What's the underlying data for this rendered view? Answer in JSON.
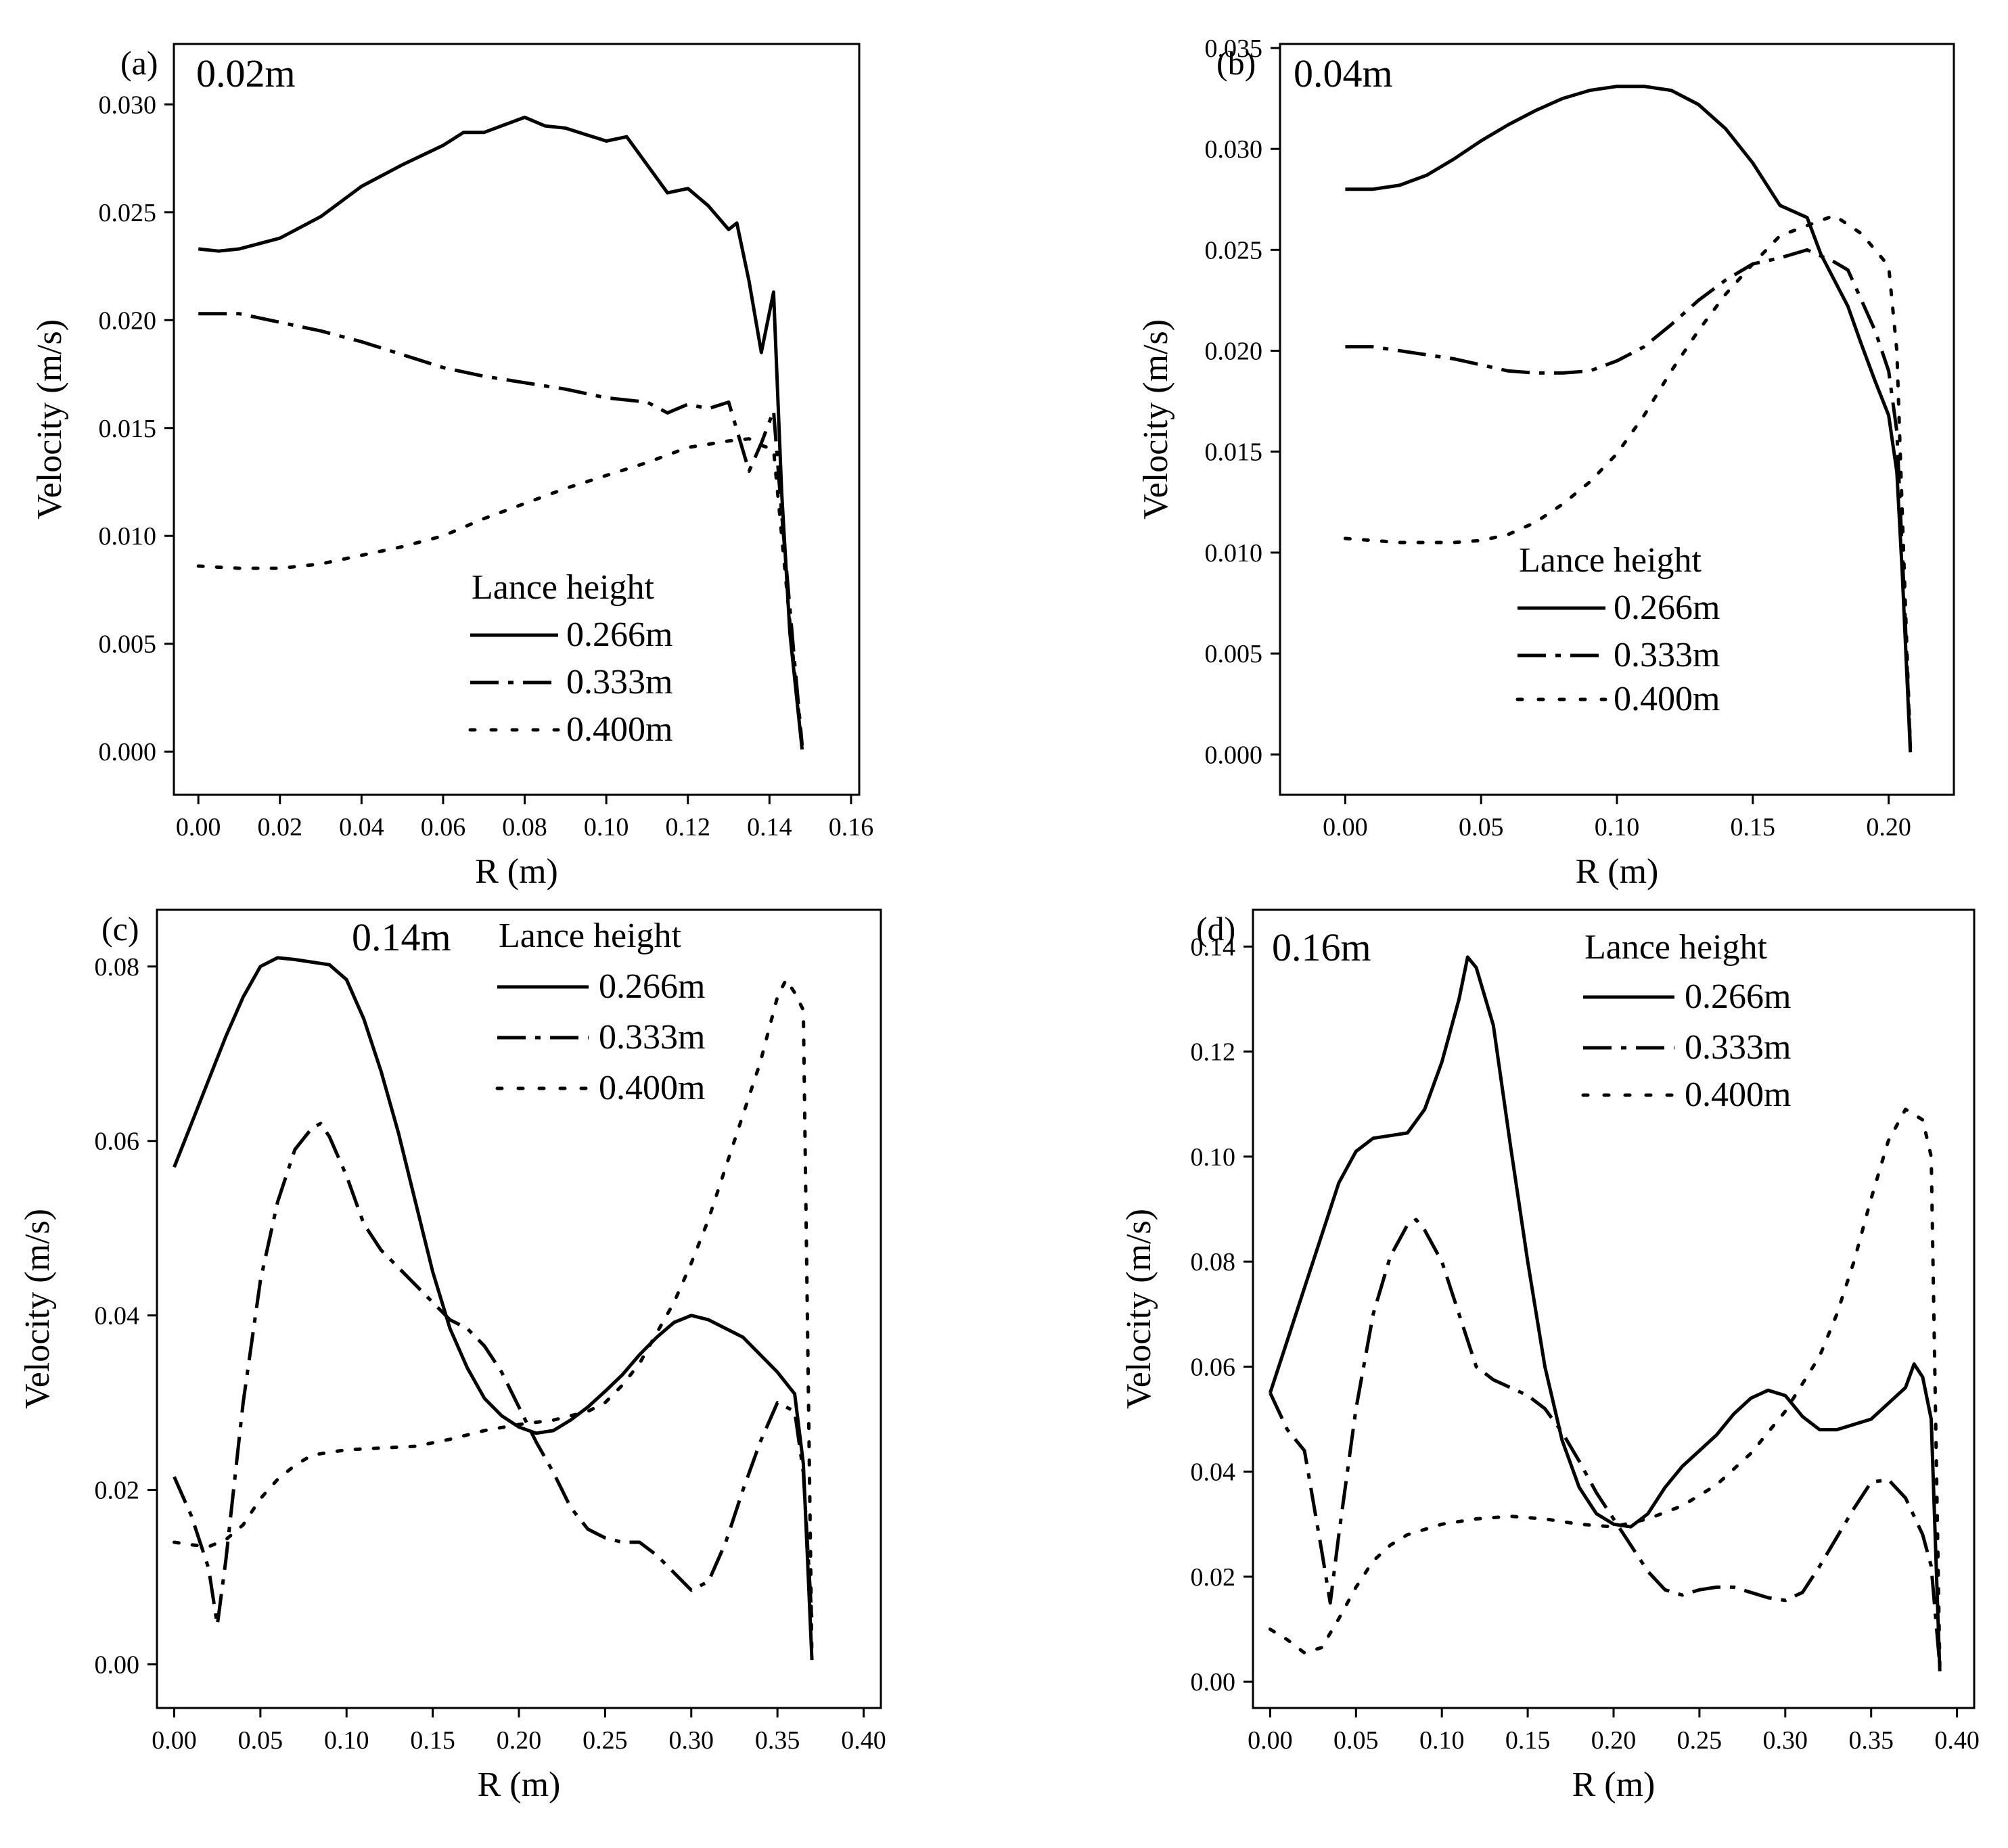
{
  "figure": {
    "shared": {
      "xlabel": "R (m)",
      "ylabel": "Velocity (m/s)",
      "legend_title": "Lance height",
      "series_names": [
        "0.266m",
        "0.333m",
        "0.400m"
      ],
      "series_styles": [
        "solid",
        "dashdot",
        "dotted"
      ],
      "line_color": "#000000"
    }
  },
  "chart_data": [
    {
      "type": "line",
      "panel": "(a)",
      "title": "0.02m",
      "xlabel": "R (m)",
      "ylabel": "Velocity (m/s)",
      "xlim": [
        -0.006,
        0.162
      ],
      "ylim": [
        -0.002,
        0.0328
      ],
      "xticks": [
        0.0,
        0.02,
        0.04,
        0.06,
        0.08,
        0.1,
        0.12,
        0.14,
        0.16
      ],
      "xtick_labels": [
        "0.00",
        "0.02",
        "0.04",
        "0.06",
        "0.08",
        "0.10",
        "0.12",
        "0.14",
        "0.16"
      ],
      "yticks": [
        0.0,
        0.005,
        0.01,
        0.015,
        0.02,
        0.025,
        0.03
      ],
      "ytick_labels": [
        "0.000",
        "0.005",
        "0.010",
        "0.015",
        "0.020",
        "0.025",
        "0.030"
      ],
      "legend_position": "lower-right",
      "series": [
        {
          "name": "0.266m",
          "style": "solid",
          "x": [
            0,
            0.005,
            0.01,
            0.02,
            0.03,
            0.04,
            0.05,
            0.06,
            0.065,
            0.07,
            0.08,
            0.085,
            0.09,
            0.095,
            0.1,
            0.105,
            0.11,
            0.115,
            0.12,
            0.125,
            0.13,
            0.132,
            0.135,
            0.138,
            0.141,
            0.143,
            0.145,
            0.148
          ],
          "y": [
            0.0233,
            0.0232,
            0.0233,
            0.0238,
            0.0248,
            0.0262,
            0.0272,
            0.0281,
            0.0287,
            0.0287,
            0.0294,
            0.029,
            0.0289,
            0.0286,
            0.0283,
            0.0285,
            0.0272,
            0.0259,
            0.0261,
            0.0253,
            0.0242,
            0.0245,
            0.0218,
            0.0185,
            0.0213,
            0.012,
            0.0055,
            0.0001
          ]
        },
        {
          "name": "0.333m",
          "style": "dashdot",
          "x": [
            0,
            0.01,
            0.02,
            0.03,
            0.04,
            0.05,
            0.06,
            0.07,
            0.08,
            0.09,
            0.1,
            0.11,
            0.115,
            0.12,
            0.125,
            0.13,
            0.135,
            0.138,
            0.141,
            0.143,
            0.146,
            0.148
          ],
          "y": [
            0.0203,
            0.0203,
            0.0199,
            0.0195,
            0.019,
            0.0184,
            0.0178,
            0.0174,
            0.0171,
            0.0168,
            0.0164,
            0.0162,
            0.0157,
            0.0161,
            0.0159,
            0.0162,
            0.013,
            0.0143,
            0.0158,
            0.011,
            0.0045,
            0.0003
          ]
        },
        {
          "name": "0.400m",
          "style": "dotted",
          "x": [
            0,
            0.01,
            0.02,
            0.03,
            0.04,
            0.05,
            0.06,
            0.07,
            0.08,
            0.09,
            0.1,
            0.11,
            0.12,
            0.13,
            0.135,
            0.138,
            0.141,
            0.143,
            0.146,
            0.148
          ],
          "y": [
            0.0086,
            0.0085,
            0.0085,
            0.0087,
            0.0091,
            0.0095,
            0.01,
            0.0108,
            0.0115,
            0.0122,
            0.0128,
            0.0134,
            0.0141,
            0.0144,
            0.0145,
            0.0142,
            0.014,
            0.01,
            0.004,
            0.0003
          ]
        }
      ]
    },
    {
      "type": "line",
      "panel": "(b)",
      "title": "0.04m",
      "xlabel": "R (m)",
      "ylabel": "Velocity (m/s)",
      "xlim": [
        -0.024,
        0.224
      ],
      "ylim": [
        -0.002,
        0.0352
      ],
      "xticks": [
        0.0,
        0.05,
        0.1,
        0.15,
        0.2
      ],
      "xtick_labels": [
        "0.00",
        "0.05",
        "0.10",
        "0.15",
        "0.20"
      ],
      "yticks": [
        0.0,
        0.005,
        0.01,
        0.015,
        0.02,
        0.025,
        0.03,
        0.035
      ],
      "ytick_labels": [
        "0.000",
        "0.005",
        "0.010",
        "0.015",
        "0.020",
        "0.025",
        "0.030",
        "0.035"
      ],
      "legend_position": "lower-center",
      "series": [
        {
          "name": "0.266m",
          "style": "solid",
          "x": [
            0,
            0.01,
            0.02,
            0.03,
            0.04,
            0.05,
            0.06,
            0.07,
            0.08,
            0.09,
            0.1,
            0.11,
            0.12,
            0.13,
            0.14,
            0.15,
            0.16,
            0.17,
            0.175,
            0.18,
            0.185,
            0.19,
            0.195,
            0.2,
            0.203,
            0.205,
            0.208
          ],
          "y": [
            0.028,
            0.028,
            0.0282,
            0.0287,
            0.0295,
            0.0304,
            0.0312,
            0.0319,
            0.0325,
            0.0329,
            0.0331,
            0.0331,
            0.0329,
            0.0322,
            0.031,
            0.0293,
            0.0272,
            0.0266,
            0.0248,
            0.0235,
            0.0222,
            0.0203,
            0.0185,
            0.0168,
            0.014,
            0.009,
            0.0001
          ]
        },
        {
          "name": "0.333m",
          "style": "dashdot",
          "x": [
            0,
            0.01,
            0.02,
            0.03,
            0.04,
            0.05,
            0.06,
            0.07,
            0.08,
            0.09,
            0.1,
            0.11,
            0.12,
            0.13,
            0.14,
            0.15,
            0.16,
            0.17,
            0.18,
            0.185,
            0.19,
            0.195,
            0.2,
            0.203,
            0.206,
            0.208
          ],
          "y": [
            0.0202,
            0.0202,
            0.02,
            0.0198,
            0.0196,
            0.0193,
            0.019,
            0.0189,
            0.0189,
            0.019,
            0.0195,
            0.0202,
            0.0213,
            0.0225,
            0.0235,
            0.0243,
            0.0246,
            0.025,
            0.0244,
            0.024,
            0.0225,
            0.021,
            0.019,
            0.016,
            0.007,
            0.0003
          ]
        },
        {
          "name": "0.400m",
          "style": "dotted",
          "x": [
            0,
            0.02,
            0.04,
            0.05,
            0.06,
            0.07,
            0.08,
            0.09,
            0.1,
            0.11,
            0.12,
            0.13,
            0.14,
            0.15,
            0.16,
            0.17,
            0.18,
            0.19,
            0.2,
            0.203,
            0.206,
            0.208
          ],
          "y": [
            0.0107,
            0.0105,
            0.0105,
            0.0106,
            0.0109,
            0.0115,
            0.0124,
            0.0135,
            0.0149,
            0.0168,
            0.019,
            0.021,
            0.0228,
            0.0243,
            0.0257,
            0.0262,
            0.0267,
            0.0258,
            0.0242,
            0.02,
            0.008,
            0.0003
          ]
        }
      ]
    },
    {
      "type": "line",
      "panel": "(c)",
      "title": "0.14m",
      "xlabel": "R (m)",
      "ylabel": "Velocity (m/s)",
      "xlim": [
        -0.01,
        0.41
      ],
      "ylim": [
        -0.005,
        0.0865
      ],
      "xticks": [
        0.0,
        0.05,
        0.1,
        0.15,
        0.2,
        0.25,
        0.3,
        0.35,
        0.4
      ],
      "xtick_labels": [
        "0.00",
        "0.05",
        "0.10",
        "0.15",
        "0.20",
        "0.25",
        "0.30",
        "0.35",
        "0.40"
      ],
      "yticks": [
        0.0,
        0.02,
        0.04,
        0.06,
        0.08
      ],
      "ytick_labels": [
        "0.00",
        "0.02",
        "0.04",
        "0.06",
        "0.08"
      ],
      "legend_position": "top-right",
      "series": [
        {
          "name": "0.266m",
          "style": "solid",
          "x": [
            0,
            0.01,
            0.02,
            0.03,
            0.04,
            0.05,
            0.06,
            0.07,
            0.08,
            0.09,
            0.1,
            0.11,
            0.12,
            0.13,
            0.14,
            0.15,
            0.16,
            0.17,
            0.18,
            0.19,
            0.2,
            0.21,
            0.22,
            0.23,
            0.24,
            0.25,
            0.26,
            0.27,
            0.28,
            0.29,
            0.3,
            0.31,
            0.32,
            0.33,
            0.34,
            0.35,
            0.36,
            0.365,
            0.37
          ],
          "y": [
            0.057,
            0.062,
            0.067,
            0.072,
            0.0765,
            0.08,
            0.081,
            0.0808,
            0.0805,
            0.0802,
            0.0785,
            0.074,
            0.068,
            0.061,
            0.053,
            0.045,
            0.0385,
            0.034,
            0.0305,
            0.0285,
            0.0272,
            0.0265,
            0.0268,
            0.028,
            0.0295,
            0.0313,
            0.0332,
            0.0355,
            0.0375,
            0.0392,
            0.04,
            0.0395,
            0.0385,
            0.0375,
            0.0355,
            0.0335,
            0.031,
            0.023,
            0.0005
          ]
        },
        {
          "name": "0.333m",
          "style": "dashdot",
          "x": [
            0,
            0.01,
            0.02,
            0.025,
            0.03,
            0.04,
            0.05,
            0.06,
            0.07,
            0.08,
            0.085,
            0.09,
            0.1,
            0.11,
            0.12,
            0.13,
            0.14,
            0.15,
            0.16,
            0.17,
            0.18,
            0.19,
            0.2,
            0.21,
            0.22,
            0.23,
            0.24,
            0.25,
            0.26,
            0.27,
            0.28,
            0.29,
            0.3,
            0.31,
            0.32,
            0.33,
            0.34,
            0.35,
            0.36,
            0.365,
            0.37
          ],
          "y": [
            0.0215,
            0.017,
            0.011,
            0.0045,
            0.012,
            0.03,
            0.044,
            0.053,
            0.059,
            0.0615,
            0.062,
            0.0605,
            0.056,
            0.0505,
            0.0475,
            0.0455,
            0.0435,
            0.0415,
            0.0395,
            0.0385,
            0.0365,
            0.0335,
            0.0295,
            0.0255,
            0.022,
            0.018,
            0.0155,
            0.0145,
            0.014,
            0.014,
            0.0125,
            0.0105,
            0.0085,
            0.0095,
            0.014,
            0.02,
            0.0255,
            0.03,
            0.029,
            0.022,
            0.005
          ]
        },
        {
          "name": "0.400m",
          "style": "dotted",
          "x": [
            0,
            0.01,
            0.02,
            0.03,
            0.04,
            0.05,
            0.06,
            0.07,
            0.08,
            0.1,
            0.12,
            0.14,
            0.16,
            0.18,
            0.2,
            0.22,
            0.24,
            0.25,
            0.26,
            0.27,
            0.28,
            0.29,
            0.3,
            0.31,
            0.32,
            0.33,
            0.34,
            0.35,
            0.355,
            0.36,
            0.365,
            0.37
          ],
          "y": [
            0.014,
            0.0137,
            0.0135,
            0.0143,
            0.016,
            0.019,
            0.0212,
            0.0228,
            0.024,
            0.0246,
            0.0248,
            0.025,
            0.0258,
            0.0268,
            0.0275,
            0.028,
            0.029,
            0.03,
            0.032,
            0.0345,
            0.038,
            0.0415,
            0.046,
            0.051,
            0.057,
            0.063,
            0.069,
            0.0765,
            0.0785,
            0.077,
            0.075,
            0.0005
          ]
        }
      ]
    },
    {
      "type": "line",
      "panel": "(d)",
      "title": "0.16m",
      "xlabel": "R (m)",
      "ylabel": "Velocity (m/s)",
      "xlim": [
        -0.01,
        0.41
      ],
      "ylim": [
        -0.005,
        0.147
      ],
      "xticks": [
        0.0,
        0.05,
        0.1,
        0.15,
        0.2,
        0.25,
        0.3,
        0.35,
        0.4
      ],
      "xtick_labels": [
        "0.00",
        "0.05",
        "0.10",
        "0.15",
        "0.20",
        "0.25",
        "0.30",
        "0.35",
        "0.40"
      ],
      "yticks": [
        0.0,
        0.02,
        0.04,
        0.06,
        0.08,
        0.1,
        0.12,
        0.14
      ],
      "ytick_labels": [
        "0.00",
        "0.02",
        "0.04",
        "0.06",
        "0.08",
        "0.10",
        "0.12",
        "0.14"
      ],
      "legend_position": "top-right",
      "series": [
        {
          "name": "0.266m",
          "style": "solid",
          "x": [
            0,
            0.01,
            0.02,
            0.03,
            0.04,
            0.05,
            0.06,
            0.07,
            0.08,
            0.09,
            0.1,
            0.11,
            0.115,
            0.12,
            0.13,
            0.14,
            0.15,
            0.16,
            0.17,
            0.18,
            0.19,
            0.2,
            0.21,
            0.22,
            0.23,
            0.24,
            0.25,
            0.26,
            0.27,
            0.28,
            0.29,
            0.3,
            0.31,
            0.32,
            0.33,
            0.34,
            0.35,
            0.36,
            0.37,
            0.375,
            0.38,
            0.385,
            0.39
          ],
          "y": [
            0.055,
            0.065,
            0.075,
            0.085,
            0.095,
            0.101,
            0.1035,
            0.104,
            0.1045,
            0.109,
            0.118,
            0.13,
            0.138,
            0.136,
            0.125,
            0.102,
            0.08,
            0.06,
            0.046,
            0.037,
            0.032,
            0.03,
            0.0295,
            0.032,
            0.037,
            0.041,
            0.044,
            0.047,
            0.051,
            0.054,
            0.0555,
            0.0545,
            0.0505,
            0.048,
            0.048,
            0.049,
            0.05,
            0.053,
            0.056,
            0.0605,
            0.058,
            0.05,
            0.002
          ]
        },
        {
          "name": "0.333m",
          "style": "dashdot",
          "x": [
            0,
            0.01,
            0.02,
            0.03,
            0.035,
            0.04,
            0.05,
            0.06,
            0.07,
            0.08,
            0.085,
            0.09,
            0.1,
            0.11,
            0.12,
            0.13,
            0.14,
            0.15,
            0.16,
            0.17,
            0.18,
            0.19,
            0.2,
            0.21,
            0.22,
            0.23,
            0.24,
            0.25,
            0.26,
            0.27,
            0.28,
            0.29,
            0.3,
            0.31,
            0.32,
            0.33,
            0.34,
            0.35,
            0.36,
            0.37,
            0.38,
            0.385,
            0.39
          ],
          "y": [
            0.055,
            0.048,
            0.044,
            0.025,
            0.015,
            0.028,
            0.052,
            0.07,
            0.081,
            0.087,
            0.088,
            0.086,
            0.08,
            0.07,
            0.06,
            0.0575,
            0.056,
            0.0545,
            0.052,
            0.0475,
            0.042,
            0.036,
            0.031,
            0.026,
            0.021,
            0.0175,
            0.0165,
            0.0175,
            0.018,
            0.018,
            0.017,
            0.016,
            0.0155,
            0.017,
            0.022,
            0.0275,
            0.033,
            0.038,
            0.0385,
            0.035,
            0.028,
            0.022,
            0.003
          ]
        },
        {
          "name": "0.400m",
          "style": "dotted",
          "x": [
            0,
            0.01,
            0.02,
            0.03,
            0.04,
            0.05,
            0.06,
            0.07,
            0.08,
            0.1,
            0.12,
            0.14,
            0.16,
            0.18,
            0.2,
            0.22,
            0.24,
            0.26,
            0.28,
            0.3,
            0.32,
            0.33,
            0.34,
            0.35,
            0.36,
            0.37,
            0.38,
            0.385,
            0.39
          ],
          "y": [
            0.01,
            0.008,
            0.0055,
            0.0065,
            0.012,
            0.018,
            0.023,
            0.026,
            0.028,
            0.03,
            0.031,
            0.0315,
            0.031,
            0.03,
            0.0295,
            0.031,
            0.0335,
            0.0375,
            0.0435,
            0.0515,
            0.062,
            0.07,
            0.08,
            0.092,
            0.103,
            0.109,
            0.107,
            0.1,
            0.003
          ]
        }
      ]
    }
  ]
}
